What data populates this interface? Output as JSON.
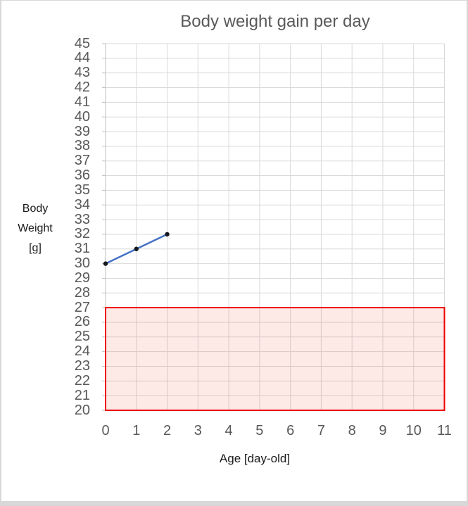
{
  "chart_data": {
    "type": "line",
    "title": "Body weight gain per day",
    "xlabel": "Age [day-old]",
    "ylabel": "Body Weight [g]",
    "ylabel_wrapped": "Body\nWeight\n[g]",
    "x": [
      0,
      1,
      2
    ],
    "series": [
      {
        "values": [
          30,
          31,
          32
        ]
      }
    ],
    "xlim": [
      0,
      11
    ],
    "ylim": [
      20,
      45
    ],
    "x_ticks": [
      0,
      1,
      2,
      3,
      4,
      5,
      6,
      7,
      8,
      9,
      10,
      11
    ],
    "y_ticks": [
      20,
      21,
      22,
      23,
      24,
      25,
      26,
      27,
      28,
      29,
      30,
      31,
      32,
      33,
      34,
      35,
      36,
      37,
      38,
      39,
      40,
      41,
      42,
      43,
      44,
      45
    ],
    "grid": true,
    "legend": false,
    "highlight_region": {
      "x_range": [
        0,
        11
      ],
      "y_range": [
        20,
        27
      ]
    },
    "colors": {
      "line": "#4472C4",
      "marker": "#15181f",
      "grid": "#d9d9d9",
      "axis": "#bfbfbf",
      "tick_label": "#595959",
      "title": "#595959",
      "axis_title": "#1a1a1a",
      "highlight_stroke": "#ee0000",
      "highlight_fill": "#f0563a",
      "highlight_fill_opacity": 0.12
    }
  }
}
